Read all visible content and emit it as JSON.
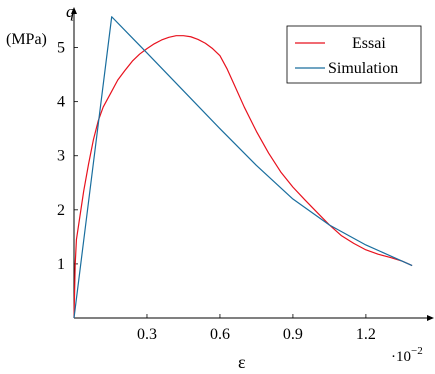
{
  "chart_data": {
    "type": "line",
    "ylabel": "q",
    "yunit": "(MPa)",
    "xlabel": "ε",
    "x_multiplier": "·10",
    "x_multiplier_exp": "−2",
    "xlim": [
      0,
      1.48
    ],
    "ylim": [
      0,
      5.75
    ],
    "x_ticks": [
      0.3,
      0.6,
      0.9,
      1.2
    ],
    "x_tick_labels": [
      "0.3",
      "0.6",
      "0.9",
      "1.2"
    ],
    "y_ticks": [
      1,
      2,
      3,
      4,
      5
    ],
    "y_tick_labels": [
      "1",
      "2",
      "3",
      "4",
      "5"
    ],
    "grid": false,
    "legend_position": "top-right",
    "series": [
      {
        "name": "Essai",
        "color": "#e8121e",
        "x": [
          0.0,
          0.005,
          0.01,
          0.02,
          0.04,
          0.06,
          0.08,
          0.1,
          0.12,
          0.15,
          0.18,
          0.21,
          0.24,
          0.27,
          0.3,
          0.33,
          0.36,
          0.39,
          0.42,
          0.45,
          0.48,
          0.51,
          0.54,
          0.57,
          0.6,
          0.63,
          0.66,
          0.7,
          0.75,
          0.8,
          0.85,
          0.9,
          0.95,
          1.0,
          1.05,
          1.1,
          1.15,
          1.2,
          1.25,
          1.3,
          1.35,
          1.39
        ],
        "y": [
          0.0,
          1.0,
          1.45,
          1.75,
          2.35,
          2.85,
          3.3,
          3.65,
          3.9,
          4.15,
          4.4,
          4.58,
          4.75,
          4.88,
          4.98,
          5.07,
          5.14,
          5.19,
          5.22,
          5.22,
          5.2,
          5.15,
          5.08,
          4.98,
          4.85,
          4.6,
          4.3,
          3.9,
          3.45,
          3.05,
          2.7,
          2.42,
          2.18,
          1.95,
          1.72,
          1.52,
          1.38,
          1.26,
          1.18,
          1.12,
          1.05,
          0.97
        ]
      },
      {
        "name": "Simulation",
        "color": "#1a6e9e",
        "x": [
          0.0,
          0.155,
          0.3,
          0.45,
          0.6,
          0.75,
          0.9,
          1.05,
          1.2,
          1.39
        ],
        "y": [
          0.0,
          5.57,
          4.9,
          4.2,
          3.5,
          2.82,
          2.2,
          1.72,
          1.35,
          0.97
        ]
      }
    ]
  }
}
